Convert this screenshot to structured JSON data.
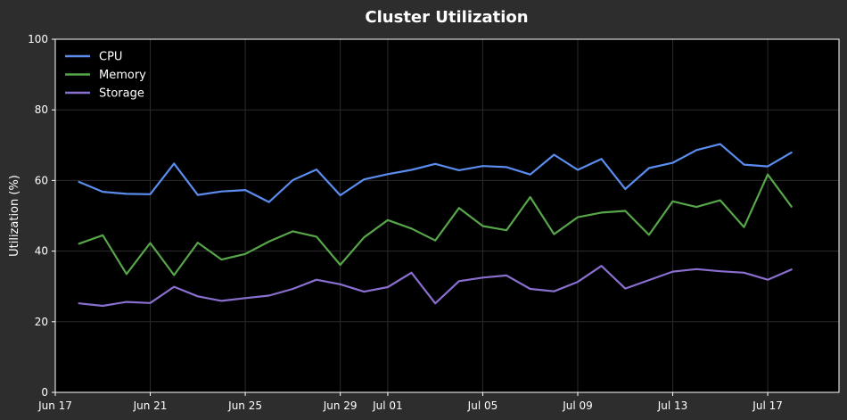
{
  "chart_data": {
    "type": "line",
    "title": "Cluster Utilization",
    "xlabel": "",
    "ylabel": "Utilization (%)",
    "ylim": [
      0,
      100
    ],
    "y_ticks": [
      0,
      20,
      40,
      60,
      80,
      100
    ],
    "x_range": [
      "2024-06-17",
      "2024-07-20"
    ],
    "x_ticks": [
      {
        "date": "2024-06-17",
        "label": "Jun 17"
      },
      {
        "date": "2024-06-21",
        "label": "Jun 21"
      },
      {
        "date": "2024-06-25",
        "label": "Jun 25"
      },
      {
        "date": "2024-06-29",
        "label": "Jun 29"
      },
      {
        "date": "2024-07-01",
        "label": "Jul 01"
      },
      {
        "date": "2024-07-05",
        "label": "Jul 05"
      },
      {
        "date": "2024-07-09",
        "label": "Jul 09"
      },
      {
        "date": "2024-07-13",
        "label": "Jul 13"
      },
      {
        "date": "2024-07-17",
        "label": "Jul 17"
      }
    ],
    "grid": true,
    "legend_position": "top-left",
    "x": [
      "2024-06-18",
      "2024-06-19",
      "2024-06-20",
      "2024-06-21",
      "2024-06-22",
      "2024-06-23",
      "2024-06-24",
      "2024-06-25",
      "2024-06-26",
      "2024-06-27",
      "2024-06-28",
      "2024-06-29",
      "2024-06-30",
      "2024-07-01",
      "2024-07-02",
      "2024-07-03",
      "2024-07-04",
      "2024-07-05",
      "2024-07-06",
      "2024-07-07",
      "2024-07-08",
      "2024-07-09",
      "2024-07-10",
      "2024-07-11",
      "2024-07-12",
      "2024-07-13",
      "2024-07-14",
      "2024-07-15",
      "2024-07-16",
      "2024-07-17",
      "2024-07-18"
    ],
    "series": [
      {
        "name": "CPU",
        "color": "#5b8def",
        "values": [
          59.6,
          56.8,
          56.2,
          56.1,
          64.8,
          55.9,
          56.9,
          57.3,
          53.9,
          60.1,
          63.1,
          55.8,
          60.3,
          61.8,
          63.0,
          64.7,
          62.9,
          64.1,
          63.8,
          61.7,
          67.3,
          63.0,
          66.1,
          57.6,
          63.5,
          65.0,
          68.6,
          70.3,
          64.5,
          64.0,
          67.9
        ]
      },
      {
        "name": "Memory",
        "color": "#57a64a",
        "values": [
          42.1,
          44.5,
          33.5,
          42.3,
          33.2,
          42.4,
          37.6,
          39.2,
          42.7,
          45.6,
          44.1,
          36.1,
          43.9,
          48.8,
          46.4,
          43.0,
          52.2,
          47.1,
          45.9,
          55.3,
          44.8,
          49.6,
          50.9,
          51.4,
          44.6,
          54.1,
          52.5,
          54.4,
          46.8,
          61.7,
          52.6
        ]
      },
      {
        "name": "Storage",
        "color": "#8a6fcf",
        "values": [
          25.2,
          24.5,
          25.6,
          25.3,
          29.9,
          27.2,
          25.9,
          26.7,
          27.4,
          29.3,
          31.9,
          30.6,
          28.5,
          29.8,
          33.9,
          25.2,
          31.5,
          32.5,
          33.1,
          29.3,
          28.6,
          31.3,
          35.8,
          29.4,
          31.8,
          34.2,
          34.9,
          34.3,
          33.9,
          31.9,
          34.8
        ]
      }
    ]
  }
}
